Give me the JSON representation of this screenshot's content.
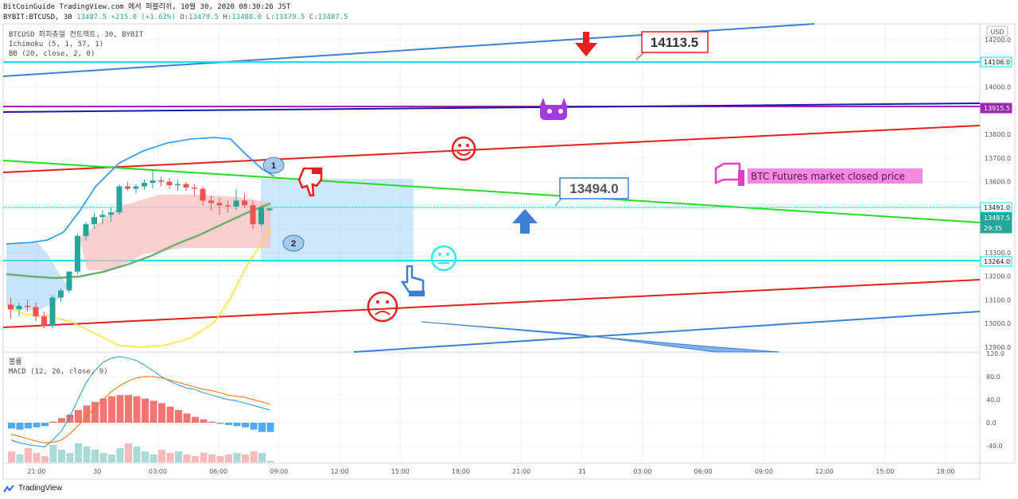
{
  "header": {
    "line1": "BitCoinGuide TradingView.com 에서 퍼블리쉬, 10월 30, 2020 08:30:26 JST",
    "symbol": "BYBIT:BTCUSD, 30",
    "last": "13487.5",
    "change": "+215.0 (+1.62%)",
    "o_label": "O:",
    "o_val": "13479.5",
    "h_label": "H:",
    "h_val": "13488.0",
    "l_label": "L:",
    "l_val": "13479.5",
    "c_label": "C:",
    "c_val": "13487.5"
  },
  "legend": {
    "title": "BTCUSD 퍼피츄얼 컨트랙트, 30, BYBIT",
    "ichimoku": "Ichimoku (5, 1, 57, 1)",
    "bb": "BB (20, close, 2, 0)",
    "volume": "볼륨",
    "macd": "MACD (12, 26, close, 9)"
  },
  "currency": "USD",
  "chart_data": {
    "type": "line",
    "price_ticks": [
      "14200.0",
      "14100.0",
      "14000.0",
      "13900.0",
      "13800.0",
      "13700.0",
      "13600.0",
      "13500.0",
      "13400.0",
      "13300.0",
      "13200.0",
      "13100.0",
      "13000.0",
      "12900.0"
    ],
    "macd_ticks": [
      "120.0",
      "80.0",
      "40.0",
      "0.0",
      "-40.0"
    ],
    "time_ticks": [
      "21:00",
      "30",
      "03:00",
      "06:00",
      "09:00",
      "12:00",
      "15:00",
      "18:00",
      "21:00",
      "31",
      "03:00",
      "06:00",
      "09:00",
      "12:00",
      "15:00",
      "18:00"
    ],
    "price_badges": [
      {
        "value": "14106.0",
        "color": "#ffffff",
        "text_color": "#131722",
        "border": "#00e5ff"
      },
      {
        "value": "13915.5",
        "color": "#9c27b0",
        "text_color": "#ffffff"
      },
      {
        "value": "13491.0",
        "color": "#ffffff",
        "text_color": "#131722",
        "border": "#00e5ff"
      },
      {
        "value": "13487.5",
        "color": "#26a69a",
        "text_color": "#ffffff"
      },
      {
        "value": "29:35",
        "color": "#26a69a",
        "text_color": "#ffffff"
      },
      {
        "value": "13264.0",
        "color": "#ffffff",
        "text_color": "#131722",
        "border": "#00e5ff"
      }
    ],
    "annotations": {
      "callout_high": "14113.5",
      "callout_mid": "13494.0",
      "note": "BTC Futures market closed price",
      "marker_1": "1",
      "marker_2": "2"
    },
    "candles": [
      {
        "o": 13080,
        "h": 13110,
        "l": 13020,
        "c": 13060
      },
      {
        "o": 13060,
        "h": 13090,
        "l": 13030,
        "c": 13075
      },
      {
        "o": 13075,
        "h": 13100,
        "l": 13050,
        "c": 13070
      },
      {
        "o": 13070,
        "h": 13090,
        "l": 13010,
        "c": 13030
      },
      {
        "o": 13030,
        "h": 13050,
        "l": 12980,
        "c": 12990
      },
      {
        "o": 12990,
        "h": 13120,
        "l": 12980,
        "c": 13110
      },
      {
        "o": 13110,
        "h": 13150,
        "l": 13090,
        "c": 13140
      },
      {
        "o": 13140,
        "h": 13220,
        "l": 13130,
        "c": 13220
      },
      {
        "o": 13220,
        "h": 13380,
        "l": 13210,
        "c": 13370
      },
      {
        "o": 13370,
        "h": 13430,
        "l": 13350,
        "c": 13420
      },
      {
        "o": 13420,
        "h": 13470,
        "l": 13400,
        "c": 13450
      },
      {
        "o": 13450,
        "h": 13480,
        "l": 13420,
        "c": 13460
      },
      {
        "o": 13460,
        "h": 13490,
        "l": 13430,
        "c": 13470
      },
      {
        "o": 13470,
        "h": 13590,
        "l": 13460,
        "c": 13580
      },
      {
        "o": 13580,
        "h": 13600,
        "l": 13560,
        "c": 13570
      },
      {
        "o": 13570,
        "h": 13590,
        "l": 13550,
        "c": 13580
      },
      {
        "o": 13580,
        "h": 13610,
        "l": 13565,
        "c": 13595
      },
      {
        "o": 13595,
        "h": 13650,
        "l": 13570,
        "c": 13605
      },
      {
        "o": 13605,
        "h": 13620,
        "l": 13580,
        "c": 13600
      },
      {
        "o": 13600,
        "h": 13615,
        "l": 13570,
        "c": 13585
      },
      {
        "o": 13585,
        "h": 13610,
        "l": 13560,
        "c": 13590
      },
      {
        "o": 13590,
        "h": 13600,
        "l": 13560,
        "c": 13575
      },
      {
        "o": 13575,
        "h": 13590,
        "l": 13540,
        "c": 13570
      },
      {
        "o": 13570,
        "h": 13580,
        "l": 13500,
        "c": 13520
      },
      {
        "o": 13520,
        "h": 13540,
        "l": 13480,
        "c": 13510
      },
      {
        "o": 13510,
        "h": 13530,
        "l": 13460,
        "c": 13500
      },
      {
        "o": 13500,
        "h": 13520,
        "l": 13470,
        "c": 13495
      },
      {
        "o": 13495,
        "h": 13570,
        "l": 13480,
        "c": 13520
      },
      {
        "o": 13520,
        "h": 13550,
        "l": 13490,
        "c": 13500
      },
      {
        "o": 13500,
        "h": 13520,
        "l": 13400,
        "c": 13420
      },
      {
        "o": 13420,
        "h": 13500,
        "l": 13410,
        "c": 13490
      },
      {
        "o": 13479,
        "h": 13488,
        "l": 13479,
        "c": 13487
      }
    ],
    "volume": [
      14,
      10,
      18,
      12,
      8,
      22,
      16,
      12,
      24,
      20,
      16,
      12,
      10,
      18,
      24,
      20,
      14,
      10,
      16,
      12,
      14,
      10,
      8,
      12,
      10,
      8,
      10,
      12,
      10,
      14,
      12,
      2
    ],
    "macd_hist": [
      -10,
      -12,
      -10,
      -8,
      -6,
      2,
      8,
      14,
      22,
      30,
      36,
      42,
      46,
      48,
      48,
      46,
      42,
      38,
      34,
      28,
      22,
      16,
      10,
      6,
      2,
      -2,
      -4,
      -6,
      -8,
      -12,
      -16,
      -16
    ],
    "macd_line": [
      -30,
      -35,
      -38,
      -40,
      -42,
      -30,
      -15,
      10,
      40,
      70,
      90,
      105,
      112,
      115,
      112,
      108,
      100,
      90,
      80,
      72,
      66,
      60,
      58,
      52,
      48,
      44,
      40,
      38,
      34,
      30,
      26,
      22
    ],
    "signal_line": [
      -20,
      -24,
      -28,
      -32,
      -35,
      -34,
      -30,
      -20,
      -5,
      10,
      25,
      40,
      54,
      64,
      72,
      78,
      80,
      80,
      78,
      74,
      70,
      66,
      62,
      58,
      56,
      52,
      48,
      46,
      44,
      40,
      36,
      32
    ]
  }
}
